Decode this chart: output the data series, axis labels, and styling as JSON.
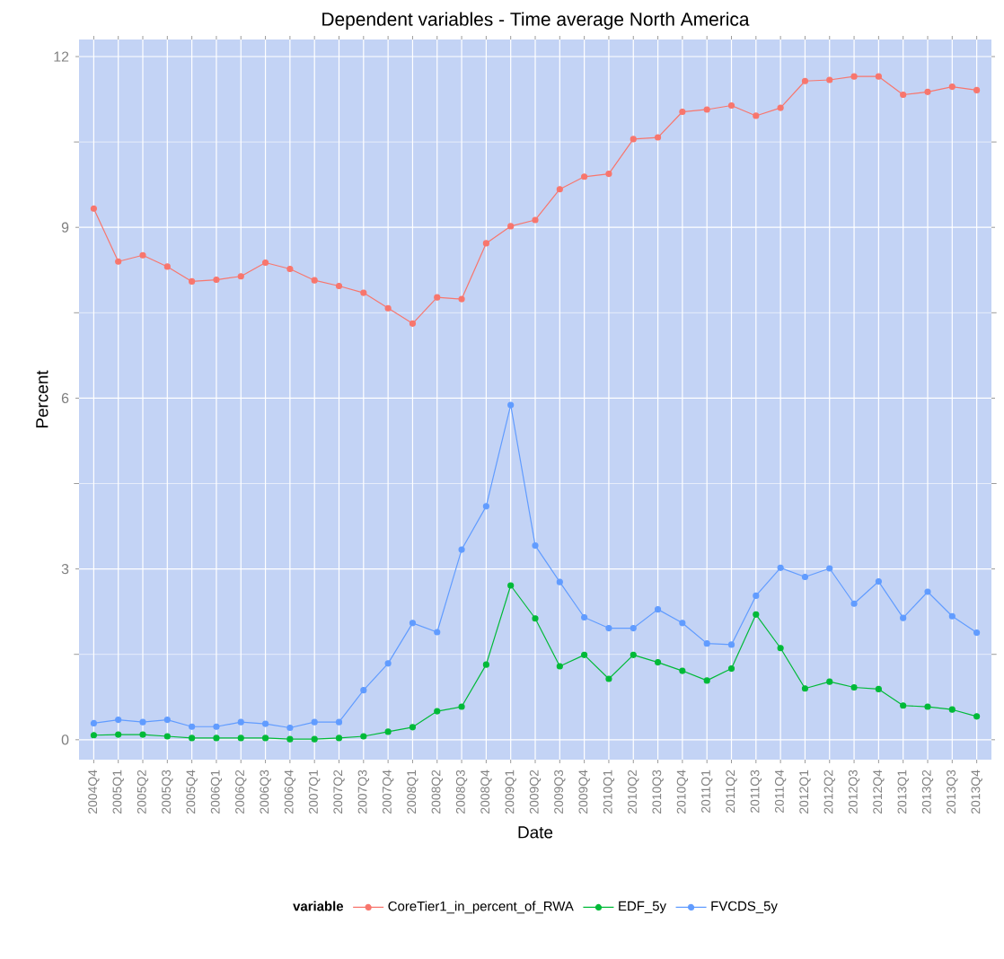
{
  "chart_data": {
    "type": "line",
    "title": "Dependent variables - Time average North America",
    "xlabel": "Date",
    "ylabel": "Percent",
    "legend_title": "variable",
    "categories": [
      "2004Q4",
      "2005Q1",
      "2005Q2",
      "2005Q3",
      "2005Q4",
      "2006Q1",
      "2006Q2",
      "2006Q3",
      "2006Q4",
      "2007Q1",
      "2007Q2",
      "2007Q3",
      "2007Q4",
      "2008Q1",
      "2008Q2",
      "2008Q3",
      "2008Q4",
      "2009Q1",
      "2009Q2",
      "2009Q3",
      "2009Q4",
      "2010Q1",
      "2010Q2",
      "2010Q3",
      "2010Q4",
      "2011Q1",
      "2011Q2",
      "2011Q3",
      "2011Q4",
      "2012Q1",
      "2012Q2",
      "2012Q3",
      "2012Q4",
      "2013Q1",
      "2013Q2",
      "2013Q3",
      "2013Q4"
    ],
    "series": [
      {
        "name": "CoreTier1_in_percent_of_RWA",
        "color": "#f8766d",
        "values": [
          9.33,
          8.4,
          8.51,
          8.31,
          8.05,
          8.08,
          8.14,
          8.38,
          8.27,
          8.07,
          7.97,
          7.85,
          7.58,
          7.31,
          7.77,
          7.74,
          8.72,
          9.02,
          9.13,
          9.67,
          9.89,
          9.94,
          10.55,
          10.58,
          11.03,
          11.07,
          11.14,
          10.96,
          11.1,
          11.57,
          11.59,
          11.65,
          11.65,
          11.33,
          11.38,
          11.47,
          11.41
        ]
      },
      {
        "name": "EDF_5y",
        "color": "#00ba38",
        "values": [
          0.08,
          0.09,
          0.09,
          0.06,
          0.03,
          0.03,
          0.03,
          0.03,
          0.01,
          0.01,
          0.03,
          0.06,
          0.14,
          0.22,
          0.5,
          0.58,
          1.32,
          2.71,
          2.13,
          1.29,
          1.49,
          1.07,
          1.49,
          1.36,
          1.21,
          1.04,
          1.25,
          2.2,
          1.61,
          0.9,
          1.02,
          0.92,
          0.89,
          0.6,
          0.58,
          0.53,
          0.41
        ]
      },
      {
        "name": "FVCDS_5y",
        "color": "#619cff",
        "values": [
          0.29,
          0.35,
          0.31,
          0.35,
          0.23,
          0.23,
          0.31,
          0.28,
          0.21,
          0.31,
          0.31,
          0.87,
          1.34,
          2.05,
          1.89,
          3.34,
          4.1,
          5.88,
          3.41,
          2.77,
          2.15,
          1.96,
          1.96,
          2.29,
          2.05,
          1.69,
          1.67,
          2.53,
          3.02,
          2.86,
          3.01,
          2.39,
          2.78,
          2.14,
          2.6,
          2.17,
          1.88
        ]
      }
    ],
    "ylim": [
      -0.35,
      12.3
    ],
    "yticks": [
      0,
      3,
      6,
      9,
      12
    ],
    "grid": true,
    "legend": "bottom",
    "marker": "circle",
    "line_style": "solid"
  }
}
